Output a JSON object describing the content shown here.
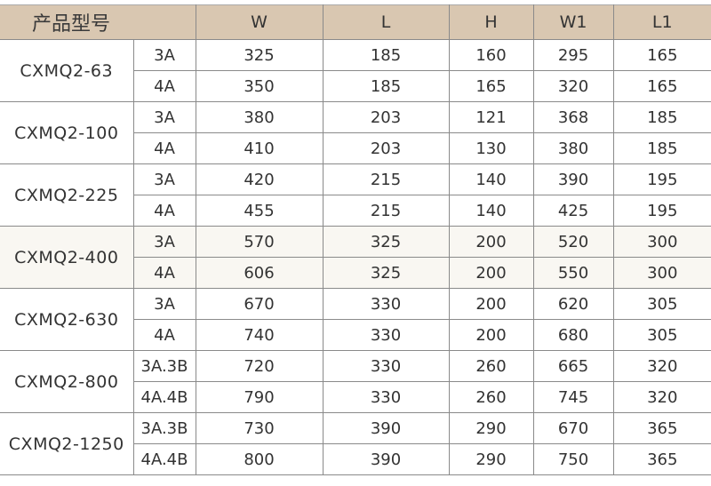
{
  "header": {
    "model": "产品型号",
    "cols": [
      "W",
      "L",
      "H",
      "W1",
      "L1"
    ]
  },
  "colors": {
    "header_bg": "#d9c7b1",
    "shaded_row_bg": "#f9f7f2",
    "border": "#8a8a8a"
  },
  "groups": [
    {
      "model": "CXMQ2-63",
      "rows": [
        {
          "type": "3A",
          "values": [
            "325",
            "185",
            "160",
            "295",
            "165"
          ]
        },
        {
          "type": "4A",
          "values": [
            "350",
            "185",
            "165",
            "320",
            "165"
          ]
        }
      ]
    },
    {
      "model": "CXMQ2-100",
      "rows": [
        {
          "type": "3A",
          "values": [
            "380",
            "203",
            "121",
            "368",
            "185"
          ]
        },
        {
          "type": "4A",
          "values": [
            "410",
            "203",
            "130",
            "380",
            "185"
          ]
        }
      ]
    },
    {
      "model": "CXMQ2-225",
      "rows": [
        {
          "type": "3A",
          "values": [
            "420",
            "215",
            "140",
            "390",
            "195"
          ]
        },
        {
          "type": "4A",
          "values": [
            "455",
            "215",
            "140",
            "425",
            "195"
          ]
        }
      ]
    },
    {
      "model": "CXMQ2-400",
      "shaded": true,
      "rows": [
        {
          "type": "3A",
          "values": [
            "570",
            "325",
            "200",
            "520",
            "300"
          ]
        },
        {
          "type": "4A",
          "values": [
            "606",
            "325",
            "200",
            "550",
            "300"
          ]
        }
      ]
    },
    {
      "model": "CXMQ2-630",
      "rows": [
        {
          "type": "3A",
          "values": [
            "670",
            "330",
            "200",
            "620",
            "305"
          ]
        },
        {
          "type": "4A",
          "values": [
            "740",
            "330",
            "200",
            "680",
            "305"
          ]
        }
      ]
    },
    {
      "model": "CXMQ2-800",
      "rows": [
        {
          "type": "3A.3B",
          "values": [
            "720",
            "330",
            "260",
            "665",
            "320"
          ]
        },
        {
          "type": "4A.4B",
          "values": [
            "790",
            "330",
            "260",
            "745",
            "320"
          ]
        }
      ]
    },
    {
      "model": "CXMQ2-1250",
      "rows": [
        {
          "type": "3A.3B",
          "values": [
            "730",
            "390",
            "290",
            "670",
            "365"
          ]
        },
        {
          "type": "4A.4B",
          "values": [
            "800",
            "390",
            "290",
            "750",
            "365"
          ]
        }
      ]
    }
  ]
}
